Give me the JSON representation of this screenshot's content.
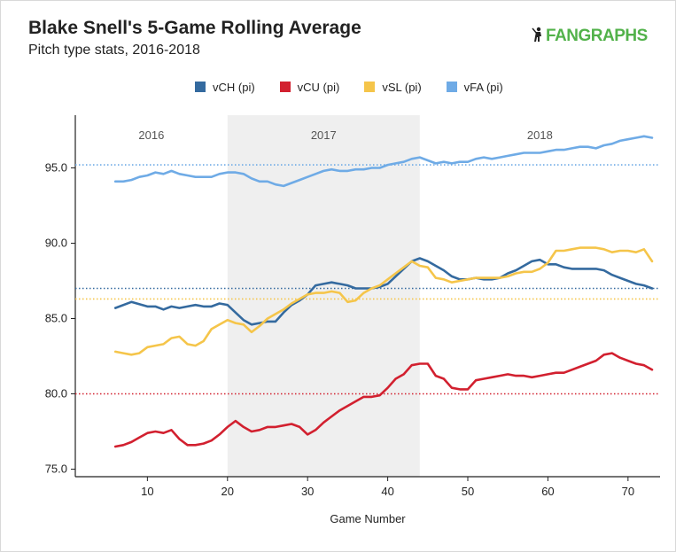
{
  "header": {
    "title": "Blake Snell's 5-Game Rolling Average",
    "subtitle": "Pitch type stats, 2016-2018",
    "brand": "FANGRAPHS"
  },
  "colors": {
    "vCH": "#346a9f",
    "vCU": "#d2202f",
    "vSL": "#f5c54a",
    "vFA": "#6fabe6",
    "season_band": "#efefef"
  },
  "chart_data": {
    "type": "line",
    "title": "Blake Snell's 5-Game Rolling Average",
    "subtitle": "Pitch type stats, 2016-2018",
    "xlabel": "Game Number",
    "ylabel": "",
    "xlim": [
      1,
      74
    ],
    "ylim": [
      74.5,
      98.5
    ],
    "xticks": [
      10,
      20,
      30,
      40,
      50,
      60,
      70
    ],
    "yticks": [
      75.0,
      80.0,
      85.0,
      90.0,
      95.0
    ],
    "ytick_labels": [
      "75.0",
      "80.0",
      "85.0",
      "90.0",
      "95.0"
    ],
    "grid": false,
    "legend_position": "top",
    "seasons": [
      {
        "label": "2016",
        "start": 1,
        "end": 20
      },
      {
        "label": "2017",
        "start": 20,
        "end": 44
      },
      {
        "label": "2018",
        "start": 44,
        "end": 74
      }
    ],
    "reference_lines": [
      {
        "series": "vFA",
        "value": 95.2
      },
      {
        "series": "vCH",
        "value": 87.0
      },
      {
        "series": "vSL",
        "value": 86.3
      },
      {
        "series": "vCU",
        "value": 80.0
      }
    ],
    "series": [
      {
        "name": "vCH (pi)",
        "key": "vCH",
        "points": [
          [
            6,
            85.7
          ],
          [
            8,
            86.1
          ],
          [
            10,
            85.8
          ],
          [
            11,
            85.8
          ],
          [
            12,
            85.6
          ],
          [
            13,
            85.8
          ],
          [
            14,
            85.7
          ],
          [
            15,
            85.8
          ],
          [
            16,
            85.9
          ],
          [
            17,
            85.8
          ],
          [
            18,
            85.8
          ],
          [
            19,
            86.0
          ],
          [
            20,
            85.9
          ],
          [
            21,
            85.4
          ],
          [
            22,
            84.9
          ],
          [
            23,
            84.6
          ],
          [
            24,
            84.7
          ],
          [
            25,
            84.8
          ],
          [
            26,
            84.8
          ],
          [
            27,
            85.4
          ],
          [
            28,
            85.9
          ],
          [
            29,
            86.2
          ],
          [
            30,
            86.6
          ],
          [
            31,
            87.2
          ],
          [
            32,
            87.3
          ],
          [
            33,
            87.4
          ],
          [
            34,
            87.3
          ],
          [
            35,
            87.2
          ],
          [
            36,
            87.0
          ],
          [
            37,
            87.0
          ],
          [
            38,
            87.0
          ],
          [
            39,
            87.1
          ],
          [
            40,
            87.3
          ],
          [
            41,
            87.8
          ],
          [
            42,
            88.3
          ],
          [
            43,
            88.8
          ],
          [
            44,
            89.0
          ],
          [
            45,
            88.8
          ],
          [
            46,
            88.5
          ],
          [
            47,
            88.2
          ],
          [
            48,
            87.8
          ],
          [
            49,
            87.6
          ],
          [
            50,
            87.6
          ],
          [
            51,
            87.7
          ],
          [
            52,
            87.6
          ],
          [
            53,
            87.6
          ],
          [
            54,
            87.7
          ],
          [
            55,
            88.0
          ],
          [
            56,
            88.2
          ],
          [
            57,
            88.5
          ],
          [
            58,
            88.8
          ],
          [
            59,
            88.9
          ],
          [
            60,
            88.6
          ],
          [
            61,
            88.6
          ],
          [
            62,
            88.4
          ],
          [
            63,
            88.3
          ],
          [
            64,
            88.3
          ],
          [
            65,
            88.3
          ],
          [
            66,
            88.3
          ],
          [
            67,
            88.2
          ],
          [
            68,
            87.9
          ],
          [
            69,
            87.7
          ],
          [
            70,
            87.5
          ],
          [
            71,
            87.3
          ],
          [
            72,
            87.2
          ],
          [
            73,
            87.0
          ]
        ]
      },
      {
        "name": "vCU (pi)",
        "key": "vCU",
        "points": [
          [
            6,
            76.5
          ],
          [
            7,
            76.6
          ],
          [
            8,
            76.8
          ],
          [
            9,
            77.1
          ],
          [
            10,
            77.4
          ],
          [
            11,
            77.5
          ],
          [
            12,
            77.4
          ],
          [
            13,
            77.6
          ],
          [
            14,
            77.0
          ],
          [
            15,
            76.6
          ],
          [
            16,
            76.6
          ],
          [
            17,
            76.7
          ],
          [
            18,
            76.9
          ],
          [
            19,
            77.3
          ],
          [
            20,
            77.8
          ],
          [
            21,
            78.2
          ],
          [
            22,
            77.8
          ],
          [
            23,
            77.5
          ],
          [
            24,
            77.6
          ],
          [
            25,
            77.8
          ],
          [
            26,
            77.8
          ],
          [
            27,
            77.9
          ],
          [
            28,
            78.0
          ],
          [
            29,
            77.8
          ],
          [
            30,
            77.3
          ],
          [
            31,
            77.6
          ],
          [
            32,
            78.1
          ],
          [
            33,
            78.5
          ],
          [
            34,
            78.9
          ],
          [
            35,
            79.2
          ],
          [
            36,
            79.5
          ],
          [
            37,
            79.8
          ],
          [
            38,
            79.8
          ],
          [
            39,
            79.9
          ],
          [
            40,
            80.4
          ],
          [
            41,
            81.0
          ],
          [
            42,
            81.3
          ],
          [
            43,
            81.9
          ],
          [
            44,
            82.0
          ],
          [
            45,
            82.0
          ],
          [
            46,
            81.2
          ],
          [
            47,
            81.0
          ],
          [
            48,
            80.4
          ],
          [
            49,
            80.3
          ],
          [
            50,
            80.3
          ],
          [
            51,
            80.9
          ],
          [
            52,
            81.0
          ],
          [
            53,
            81.1
          ],
          [
            54,
            81.2
          ],
          [
            55,
            81.3
          ],
          [
            56,
            81.2
          ],
          [
            57,
            81.2
          ],
          [
            58,
            81.1
          ],
          [
            59,
            81.2
          ],
          [
            60,
            81.3
          ],
          [
            61,
            81.4
          ],
          [
            62,
            81.4
          ],
          [
            63,
            81.6
          ],
          [
            64,
            81.8
          ],
          [
            65,
            82.0
          ],
          [
            66,
            82.2
          ],
          [
            67,
            82.6
          ],
          [
            68,
            82.7
          ],
          [
            69,
            82.4
          ],
          [
            70,
            82.2
          ],
          [
            71,
            82.0
          ],
          [
            72,
            81.9
          ],
          [
            73,
            81.6
          ]
        ]
      },
      {
        "name": "vSL (pi)",
        "key": "vSL",
        "points": [
          [
            6,
            82.8
          ],
          [
            7,
            82.7
          ],
          [
            8,
            82.6
          ],
          [
            9,
            82.7
          ],
          [
            10,
            83.1
          ],
          [
            11,
            83.2
          ],
          [
            12,
            83.3
          ],
          [
            13,
            83.7
          ],
          [
            14,
            83.8
          ],
          [
            15,
            83.3
          ],
          [
            16,
            83.2
          ],
          [
            17,
            83.5
          ],
          [
            18,
            84.3
          ],
          [
            19,
            84.6
          ],
          [
            20,
            84.9
          ],
          [
            21,
            84.7
          ],
          [
            22,
            84.6
          ],
          [
            23,
            84.1
          ],
          [
            24,
            84.5
          ],
          [
            25,
            85.0
          ],
          [
            26,
            85.3
          ],
          [
            27,
            85.6
          ],
          [
            28,
            86.0
          ],
          [
            29,
            86.3
          ],
          [
            30,
            86.6
          ],
          [
            31,
            86.7
          ],
          [
            32,
            86.7
          ],
          [
            33,
            86.8
          ],
          [
            34,
            86.7
          ],
          [
            35,
            86.1
          ],
          [
            36,
            86.2
          ],
          [
            37,
            86.7
          ],
          [
            38,
            87.0
          ],
          [
            39,
            87.2
          ],
          [
            40,
            87.6
          ],
          [
            41,
            88.0
          ],
          [
            42,
            88.4
          ],
          [
            43,
            88.8
          ],
          [
            44,
            88.5
          ],
          [
            45,
            88.4
          ],
          [
            46,
            87.7
          ],
          [
            47,
            87.6
          ],
          [
            48,
            87.4
          ],
          [
            49,
            87.5
          ],
          [
            50,
            87.6
          ],
          [
            51,
            87.7
          ],
          [
            52,
            87.7
          ],
          [
            53,
            87.7
          ],
          [
            54,
            87.7
          ],
          [
            55,
            87.8
          ],
          [
            56,
            88.0
          ],
          [
            57,
            88.1
          ],
          [
            58,
            88.1
          ],
          [
            59,
            88.3
          ],
          [
            60,
            88.7
          ],
          [
            61,
            89.5
          ],
          [
            62,
            89.5
          ],
          [
            63,
            89.6
          ],
          [
            64,
            89.7
          ],
          [
            65,
            89.7
          ],
          [
            66,
            89.7
          ],
          [
            67,
            89.6
          ],
          [
            68,
            89.4
          ],
          [
            69,
            89.5
          ],
          [
            70,
            89.5
          ],
          [
            71,
            89.4
          ],
          [
            72,
            89.6
          ],
          [
            73,
            88.8
          ]
        ]
      },
      {
        "name": "vFA (pi)",
        "key": "vFA",
        "points": [
          [
            6,
            94.1
          ],
          [
            7,
            94.1
          ],
          [
            8,
            94.2
          ],
          [
            9,
            94.4
          ],
          [
            10,
            94.5
          ],
          [
            11,
            94.7
          ],
          [
            12,
            94.6
          ],
          [
            13,
            94.8
          ],
          [
            14,
            94.6
          ],
          [
            15,
            94.5
          ],
          [
            16,
            94.4
          ],
          [
            17,
            94.4
          ],
          [
            18,
            94.4
          ],
          [
            19,
            94.6
          ],
          [
            20,
            94.7
          ],
          [
            21,
            94.7
          ],
          [
            22,
            94.6
          ],
          [
            23,
            94.3
          ],
          [
            24,
            94.1
          ],
          [
            25,
            94.1
          ],
          [
            26,
            93.9
          ],
          [
            27,
            93.8
          ],
          [
            28,
            94.0
          ],
          [
            29,
            94.2
          ],
          [
            30,
            94.4
          ],
          [
            31,
            94.6
          ],
          [
            32,
            94.8
          ],
          [
            33,
            94.9
          ],
          [
            34,
            94.8
          ],
          [
            35,
            94.8
          ],
          [
            36,
            94.9
          ],
          [
            37,
            94.9
          ],
          [
            38,
            95.0
          ],
          [
            39,
            95.0
          ],
          [
            40,
            95.2
          ],
          [
            41,
            95.3
          ],
          [
            42,
            95.4
          ],
          [
            43,
            95.6
          ],
          [
            44,
            95.7
          ],
          [
            45,
            95.5
          ],
          [
            46,
            95.3
          ],
          [
            47,
            95.4
          ],
          [
            48,
            95.3
          ],
          [
            49,
            95.4
          ],
          [
            50,
            95.4
          ],
          [
            51,
            95.6
          ],
          [
            52,
            95.7
          ],
          [
            53,
            95.6
          ],
          [
            54,
            95.7
          ],
          [
            55,
            95.8
          ],
          [
            56,
            95.9
          ],
          [
            57,
            96.0
          ],
          [
            58,
            96.0
          ],
          [
            59,
            96.0
          ],
          [
            60,
            96.1
          ],
          [
            61,
            96.2
          ],
          [
            62,
            96.2
          ],
          [
            63,
            96.3
          ],
          [
            64,
            96.4
          ],
          [
            65,
            96.4
          ],
          [
            66,
            96.3
          ],
          [
            67,
            96.5
          ],
          [
            68,
            96.6
          ],
          [
            69,
            96.8
          ],
          [
            70,
            96.9
          ],
          [
            71,
            97.0
          ],
          [
            72,
            97.1
          ],
          [
            73,
            97.0
          ]
        ]
      }
    ]
  }
}
